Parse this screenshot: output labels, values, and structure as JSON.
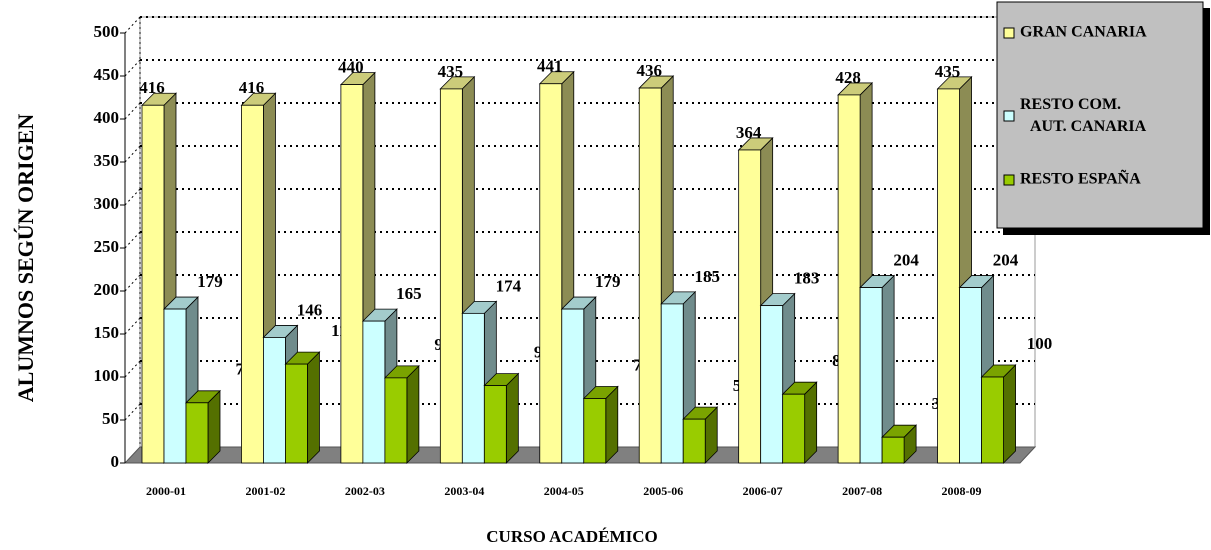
{
  "chart_data": {
    "type": "bar3d",
    "xlabel": "CURSO ACADÉMICO",
    "ylabel": "ALUMNOS SEGÚN ORIGEN",
    "categories": [
      "2000-01",
      "2001-02",
      "2002-03",
      "2003-04",
      "2004-05",
      "2005-06",
      "2006-07",
      "2007-08",
      "2008-09"
    ],
    "series": [
      {
        "name": "GRAN CANARIA",
        "color": "#ffff99",
        "values": [
          416,
          416,
          440,
          435,
          441,
          436,
          364,
          428,
          435
        ]
      },
      {
        "name": "RESTO COM. AUT. CANARIA",
        "color": "#ccffff",
        "values": [
          179,
          146,
          165,
          174,
          179,
          185,
          183,
          204,
          204
        ]
      },
      {
        "name": "RESTO ESPAÑA",
        "color": "#99cc00",
        "values": [
          70,
          115,
          99,
          90,
          75,
          51,
          80,
          30,
          100
        ]
      }
    ],
    "ylim": [
      0,
      500
    ],
    "yticks": [
      0,
      50,
      100,
      150,
      200,
      250,
      300,
      350,
      400,
      450,
      500
    ],
    "grid": true,
    "legend": "top-right"
  }
}
